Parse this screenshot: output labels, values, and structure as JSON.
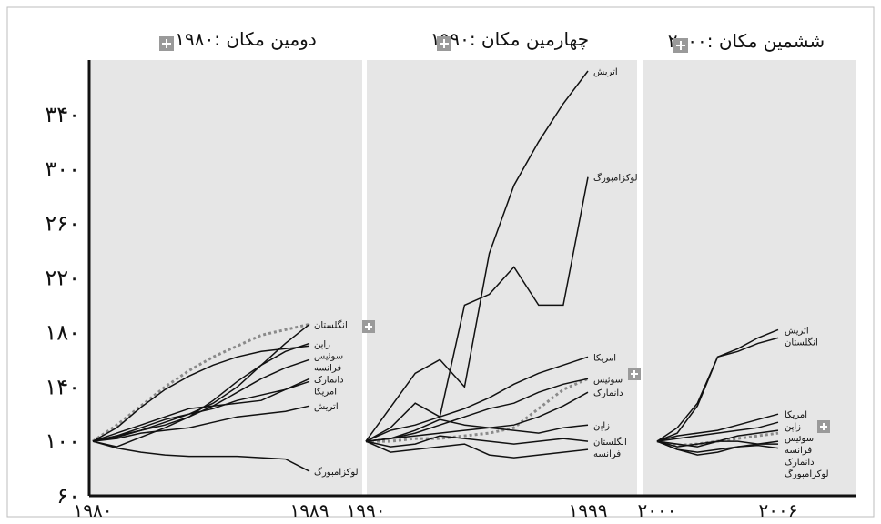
{
  "chart_data": {
    "type": "line",
    "ylim": [
      60,
      380
    ],
    "yticks": [
      "۳۴۰",
      "۳۰۰",
      "۲۶۰",
      "۲۲۰",
      "۱۸۰",
      "۱۴۰",
      "۱۰۰",
      "۶۰"
    ],
    "ytick_values": [
      340,
      300,
      260,
      220,
      180,
      140,
      100,
      60
    ],
    "panels": [
      {
        "title": "دومین مکان  :۱۹۸۰",
        "x": [
          1980,
          1981,
          1982,
          1983,
          1984,
          1985,
          1986,
          1987,
          1988,
          1989
        ],
        "xticks": [
          {
            "label": "۱۹۸۰",
            "value": 1980
          },
          {
            "label": "۱۹۸۹",
            "value": 1989
          }
        ],
        "series": [
          {
            "name": "انگلستان",
            "values": [
              100,
              103,
              108,
              114,
              120,
              128,
              140,
              156,
              172,
              186
            ]
          },
          {
            "name": "سوئیس",
            "values": [
              100,
              110,
              125,
              138,
              148,
              156,
              162,
              166,
              168,
              170
            ]
          },
          {
            "name": "زاپن",
            "values": [
              100,
              96,
              103,
              110,
              118,
              130,
              144,
              156,
              166,
              172
            ]
          },
          {
            "name": "فرانسه",
            "values": [
              100,
              104,
              108,
              112,
              118,
              126,
              136,
              146,
              154,
              160
            ]
          },
          {
            "name": "دانمارک",
            "values": [
              100,
              106,
              112,
              118,
              124,
              126,
              128,
              130,
              138,
              146
            ]
          },
          {
            "name": "امریکا",
            "values": [
              100,
              104,
              110,
              116,
              120,
              124,
              130,
              134,
              138,
              144
            ]
          },
          {
            "name": "اتریش",
            "values": [
              100,
              102,
              106,
              108,
              110,
              114,
              118,
              120,
              122,
              126
            ]
          },
          {
            "name": "لوکزامبورگ",
            "values": [
              100,
              95,
              92,
              90,
              89,
              89,
              89,
              88,
              87,
              78
            ]
          }
        ],
        "dotted_values": [
          100,
          112,
          126,
          140,
          152,
          162,
          170,
          178,
          182,
          186
        ]
      },
      {
        "title": "چهارمین مکان  :۱۹۹۰",
        "x": [
          1990,
          1991,
          1992,
          1993,
          1994,
          1995,
          1996,
          1997,
          1998,
          1999
        ],
        "xticks": [
          {
            "label": "۱۹۹۰",
            "value": 1990
          },
          {
            "label": "۱۹۹۹",
            "value": 1999
          }
        ],
        "series": [
          {
            "name": "اتریش",
            "values": [
              100,
              125,
              150,
              160,
              140,
              238,
              288,
              320,
              348,
              372
            ]
          },
          {
            "name": "لوکزامبورگ",
            "values": [
              100,
              110,
              128,
              118,
              200,
              208,
              228,
              200,
              200,
              294
            ]
          },
          {
            "name": "امریکا",
            "values": [
              100,
              108,
              112,
              118,
              124,
              132,
              142,
              150,
              156,
              162
            ]
          },
          {
            "name": "سوئیس",
            "values": [
              100,
              102,
              106,
              112,
              118,
              124,
              128,
              136,
              142,
              146
            ]
          },
          {
            "name": "دانمارک",
            "values": [
              100,
              102,
              104,
              106,
              108,
              110,
              112,
              118,
              126,
              136
            ]
          },
          {
            "name": "زاپن",
            "values": [
              100,
              102,
              108,
              116,
              112,
              110,
              108,
              106,
              110,
              112
            ]
          },
          {
            "name": "انگلستان",
            "values": [
              100,
              96,
              98,
              104,
              102,
              100,
              98,
              100,
              102,
              100
            ]
          },
          {
            "name": "فرانسه",
            "values": [
              100,
              92,
              94,
              96,
              98,
              90,
              88,
              90,
              92,
              94
            ]
          }
        ],
        "dotted_values": [
          100,
          100,
          102,
          102,
          104,
          106,
          110,
          124,
          138,
          146
        ]
      },
      {
        "title": "ششمین مکان  :۲۰۰۰",
        "x": [
          2000,
          2001,
          2002,
          2003,
          2004,
          2005,
          2006
        ],
        "xticks": [
          {
            "label": "۲۰۰۰",
            "value": 2000
          },
          {
            "label": "۲۰۰۶",
            "value": 2006
          }
        ],
        "series": [
          {
            "name": "اتریش",
            "values": [
              100,
              110,
              128,
              162,
              168,
              176,
              182
            ]
          },
          {
            "name": "انگلستان",
            "values": [
              100,
              106,
              126,
              162,
              166,
              172,
              176
            ]
          },
          {
            "name": "امریکا",
            "values": [
              100,
              104,
              106,
              108,
              112,
              116,
              120
            ]
          },
          {
            "name": "زاپن",
            "values": [
              100,
              102,
              104,
              106,
              108,
              110,
              114
            ]
          },
          {
            "name": "سوئیس",
            "values": [
              100,
              96,
              98,
              100,
              104,
              106,
              108
            ]
          },
          {
            "name": "فرانسه",
            "values": [
              100,
              94,
              90,
              92,
              96,
              98,
              100
            ]
          },
          {
            "name": "دانمارک",
            "values": [
              100,
              98,
              96,
              100,
              100,
              98,
              98
            ]
          },
          {
            "name": "لوکزامبورگ",
            "values": [
              100,
              94,
              92,
              94,
              96,
              97,
              95
            ]
          }
        ],
        "dotted_values": [
          100,
          97,
          98,
          100,
          102,
          104,
          106
        ]
      }
    ]
  }
}
